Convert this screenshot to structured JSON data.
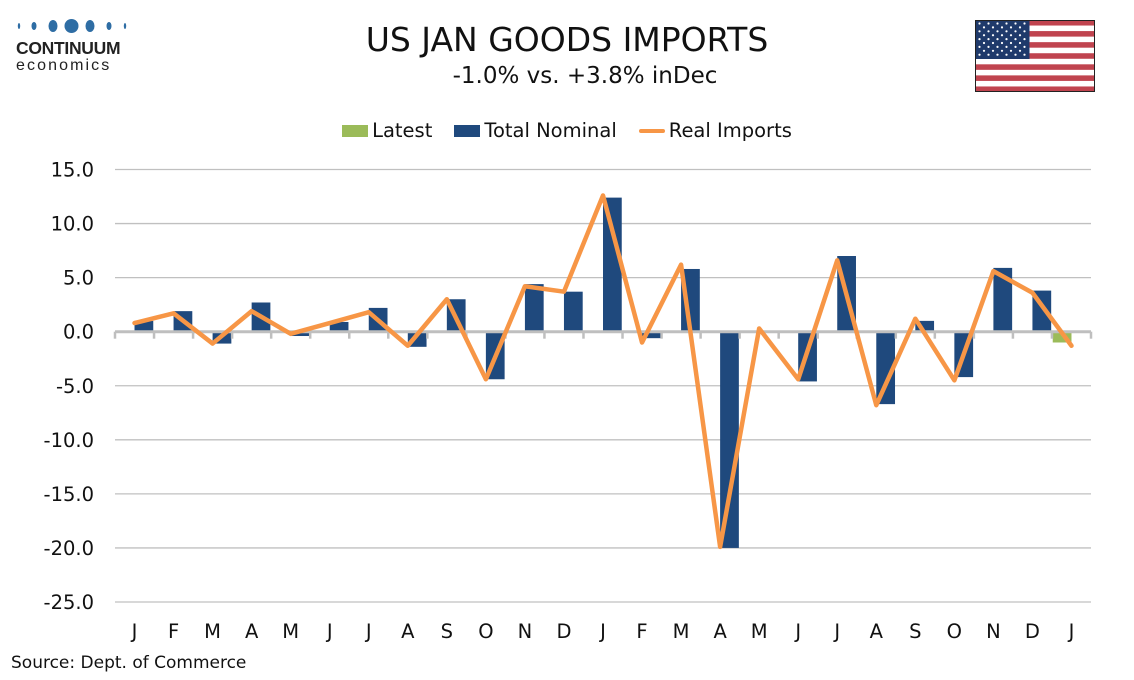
{
  "logo": {
    "name": "CONTINUUM",
    "sub": "economics",
    "dot_color": "#2e6da4"
  },
  "header": {
    "title": "US JAN GOODS IMPORTS",
    "subtitle": "-1.0% vs. +3.8% inDec"
  },
  "flag": {
    "icon": "us-flag-icon"
  },
  "source": "Source: Dept. of Commerce",
  "colors": {
    "latest": "#9bbb59",
    "nominal": "#1f497d",
    "real": "#f79646",
    "grid": "#c0c0c0",
    "axis": "#bfbfbf"
  },
  "chart_data": {
    "type": "bar",
    "title": "US JAN GOODS IMPORTS",
    "subtitle": "-1.0% vs. +3.8% inDec",
    "xlabel": "",
    "ylabel": "",
    "ylim": [
      -25,
      15
    ],
    "yticks": [
      15,
      10,
      5,
      0,
      -5,
      -10,
      -15,
      -20,
      -25
    ],
    "ytick_labels": [
      "15.0",
      "10.0",
      "5.0",
      "0.0",
      "-5.0",
      "-10.0",
      "-15.0",
      "-20.0",
      "-25.0"
    ],
    "grid": true,
    "legend_position": "top-center",
    "categories": [
      "J",
      "F",
      "M",
      "A",
      "M",
      "J",
      "J",
      "A",
      "S",
      "O",
      "N",
      "D",
      "J",
      "F",
      "M",
      "A",
      "M",
      "J",
      "J",
      "A",
      "S",
      "O",
      "N",
      "D",
      "J"
    ],
    "series": [
      {
        "name": "Latest",
        "type": "bar",
        "values": [
          null,
          null,
          null,
          null,
          null,
          null,
          null,
          null,
          null,
          null,
          null,
          null,
          null,
          null,
          null,
          null,
          null,
          null,
          null,
          null,
          null,
          null,
          null,
          null,
          -1.0
        ]
      },
      {
        "name": "Total Nominal",
        "type": "bar",
        "values": [
          1.0,
          1.9,
          -1.1,
          2.7,
          -0.4,
          0.9,
          2.2,
          -1.4,
          3.0,
          -4.4,
          4.4,
          3.7,
          12.4,
          -0.6,
          5.8,
          -20.0,
          0.0,
          -4.6,
          7.0,
          -6.7,
          1.0,
          -4.2,
          5.9,
          3.8,
          null
        ]
      },
      {
        "name": "Real Imports",
        "type": "line",
        "values": [
          0.8,
          1.7,
          -1.1,
          1.9,
          -0.2,
          0.8,
          1.8,
          -1.3,
          3.0,
          -4.4,
          4.2,
          3.7,
          12.6,
          -1.0,
          6.2,
          -19.9,
          0.3,
          -4.4,
          6.6,
          -6.8,
          1.2,
          -4.5,
          5.6,
          3.6,
          -1.3
        ]
      }
    ]
  }
}
